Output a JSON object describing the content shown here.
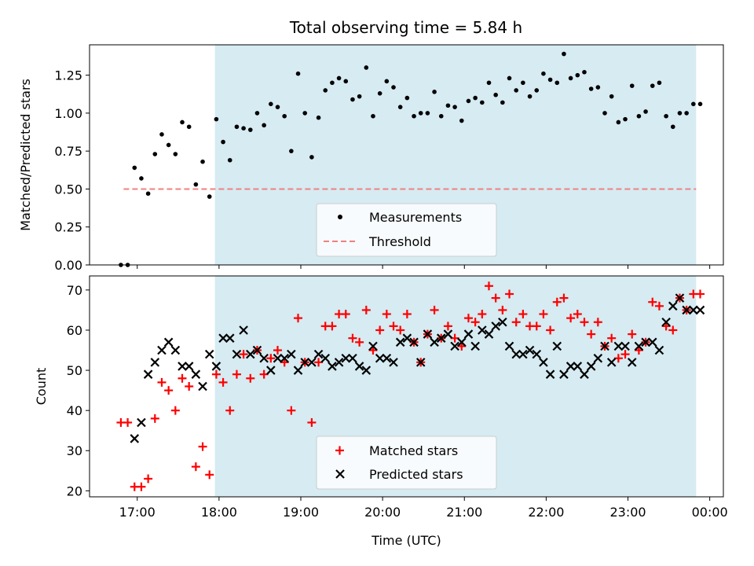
{
  "title": "Total observing time = 5.84 h",
  "xlabel": "Time (UTC)",
  "x_ticks": [
    "17:00",
    "18:00",
    "19:00",
    "20:00",
    "21:00",
    "22:00",
    "23:00",
    "00:00"
  ],
  "colors": {
    "span": "#add8e6",
    "measurement": "#000000",
    "threshold": "#f08080",
    "matched": "#ff0000",
    "predicted": "#000000"
  },
  "chart_data": [
    {
      "type": "scatter",
      "ylabel": "Matched/Predicted stars",
      "y_ticks": [
        "0.00",
        "0.25",
        "0.50",
        "0.75",
        "1.00",
        "1.25"
      ],
      "ylim": [
        0,
        1.45
      ],
      "xlim": [
        "16:25",
        "00:10"
      ],
      "shaded_span": [
        "17:57",
        "23:50"
      ],
      "threshold": {
        "value": 0.5,
        "x_range": [
          "16:50",
          "23:50"
        ]
      },
      "legend": {
        "position": "lower center",
        "entries": [
          "Measurements",
          "Threshold"
        ]
      },
      "series": [
        {
          "name": "Measurements",
          "marker": "dot",
          "x": [
            "16:48",
            "16:53",
            "16:58",
            "17:03",
            "17:08",
            "17:13",
            "17:18",
            "17:23",
            "17:28",
            "17:33",
            "17:38",
            "17:43",
            "17:48",
            "17:53",
            "17:58",
            "18:03",
            "18:08",
            "18:13",
            "18:18",
            "18:23",
            "18:28",
            "18:33",
            "18:38",
            "18:43",
            "18:48",
            "18:53",
            "18:58",
            "19:03",
            "19:08",
            "19:13",
            "19:18",
            "19:23",
            "19:28",
            "19:33",
            "19:38",
            "19:43",
            "19:48",
            "19:53",
            "19:58",
            "20:03",
            "20:08",
            "20:13",
            "20:18",
            "20:23",
            "20:28",
            "20:33",
            "20:38",
            "20:43",
            "20:48",
            "20:53",
            "20:58",
            "21:03",
            "21:08",
            "21:13",
            "21:18",
            "21:23",
            "21:28",
            "21:33",
            "21:38",
            "21:43",
            "21:48",
            "21:53",
            "21:58",
            "22:03",
            "22:08",
            "22:13",
            "22:18",
            "22:23",
            "22:28",
            "22:33",
            "22:38",
            "22:43",
            "22:48",
            "22:53",
            "22:58",
            "23:03",
            "23:08",
            "23:13",
            "23:18",
            "23:23",
            "23:28",
            "23:33",
            "23:38",
            "23:43",
            "23:48",
            "23:53"
          ],
          "y": [
            0,
            0,
            0.64,
            0.57,
            0.47,
            0.73,
            0.86,
            0.79,
            0.73,
            0.94,
            0.91,
            0.53,
            0.68,
            0.45,
            0.96,
            0.81,
            0.69,
            0.91,
            0.9,
            0.89,
            1.0,
            0.92,
            1.06,
            1.04,
            0.98,
            0.75,
            1.26,
            1.0,
            0.71,
            0.97,
            1.15,
            1.2,
            1.23,
            1.21,
            1.09,
            1.11,
            1.3,
            0.98,
            1.13,
            1.21,
            1.17,
            1.04,
            1.1,
            0.98,
            1.0,
            1.0,
            1.14,
            0.98,
            1.05,
            1.04,
            0.95,
            1.08,
            1.1,
            1.07,
            1.2,
            1.12,
            1.07,
            1.23,
            1.15,
            1.2,
            1.11,
            1.15,
            1.26,
            1.22,
            1.2,
            1.39,
            1.23,
            1.25,
            1.27,
            1.16,
            1.17,
            1.0,
            1.11,
            0.94,
            0.96,
            1.18,
            0.98,
            1.01,
            1.18,
            1.2,
            0.98,
            0.91,
            1.0,
            1.0,
            1.06,
            1.06
          ]
        }
      ]
    },
    {
      "type": "scatter",
      "ylabel": "Count",
      "y_ticks": [
        "20",
        "30",
        "40",
        "50",
        "60",
        "70"
      ],
      "ylim": [
        18.5,
        73.5
      ],
      "xlim": [
        "16:25",
        "00:10"
      ],
      "shaded_span": [
        "17:57",
        "23:50"
      ],
      "legend": {
        "position": "lower center",
        "entries": [
          "Matched stars",
          "Predicted stars"
        ]
      },
      "x": [
        "16:48",
        "16:53",
        "16:58",
        "17:03",
        "17:08",
        "17:13",
        "17:18",
        "17:23",
        "17:28",
        "17:33",
        "17:38",
        "17:43",
        "17:48",
        "17:53",
        "17:58",
        "18:03",
        "18:08",
        "18:13",
        "18:18",
        "18:23",
        "18:28",
        "18:33",
        "18:38",
        "18:43",
        "18:48",
        "18:53",
        "18:58",
        "19:03",
        "19:08",
        "19:13",
        "19:18",
        "19:23",
        "19:28",
        "19:33",
        "19:38",
        "19:43",
        "19:48",
        "19:53",
        "19:58",
        "20:03",
        "20:08",
        "20:13",
        "20:18",
        "20:23",
        "20:28",
        "20:33",
        "20:38",
        "20:43",
        "20:48",
        "20:53",
        "20:58",
        "21:03",
        "21:08",
        "21:13",
        "21:18",
        "21:23",
        "21:28",
        "21:33",
        "21:38",
        "21:43",
        "21:48",
        "21:53",
        "21:58",
        "22:03",
        "22:08",
        "22:13",
        "22:18",
        "22:23",
        "22:28",
        "22:33",
        "22:38",
        "22:43",
        "22:48",
        "22:53",
        "22:58",
        "23:03",
        "23:08",
        "23:13",
        "23:18",
        "23:23",
        "23:28",
        "23:33",
        "23:38",
        "23:43",
        "23:48",
        "23:53"
      ],
      "series": [
        {
          "name": "Matched stars",
          "marker": "plus",
          "y": [
            37,
            37,
            21,
            21,
            23,
            38,
            47,
            45,
            40,
            48,
            46,
            26,
            31,
            24,
            49,
            47,
            40,
            49,
            54,
            48,
            55,
            49,
            53,
            55,
            52,
            40,
            63,
            52,
            37,
            52,
            61,
            61,
            64,
            64,
            58,
            57,
            65,
            55,
            60,
            64,
            61,
            60,
            64,
            57,
            52,
            59,
            65,
            58,
            61,
            58,
            56,
            63,
            62,
            64,
            71,
            68,
            65,
            69,
            62,
            64,
            61,
            61,
            64,
            60,
            67,
            68,
            63,
            64,
            62,
            59,
            62,
            56,
            58,
            53,
            54,
            59,
            55,
            57,
            67,
            66,
            61,
            60,
            68,
            65,
            69,
            69
          ]
        },
        {
          "name": "Predicted stars",
          "marker": "x",
          "y": [
            null,
            null,
            33,
            37,
            49,
            52,
            55,
            57,
            55,
            51,
            51,
            49,
            46,
            54,
            51,
            58,
            58,
            54,
            60,
            54,
            55,
            53,
            50,
            53,
            53,
            54,
            50,
            52,
            52,
            54,
            53,
            51,
            52,
            53,
            53,
            51,
            50,
            56,
            53,
            53,
            52,
            57,
            58,
            57,
            52,
            59,
            57,
            58,
            59,
            56,
            57,
            59,
            56,
            60,
            59,
            61,
            62,
            56,
            54,
            54,
            55,
            54,
            52,
            49,
            56,
            49,
            51,
            51,
            49,
            51,
            53,
            56,
            52,
            56,
            56,
            52,
            56,
            57,
            57,
            55,
            62,
            66,
            68,
            65,
            65,
            65
          ]
        }
      ]
    }
  ]
}
